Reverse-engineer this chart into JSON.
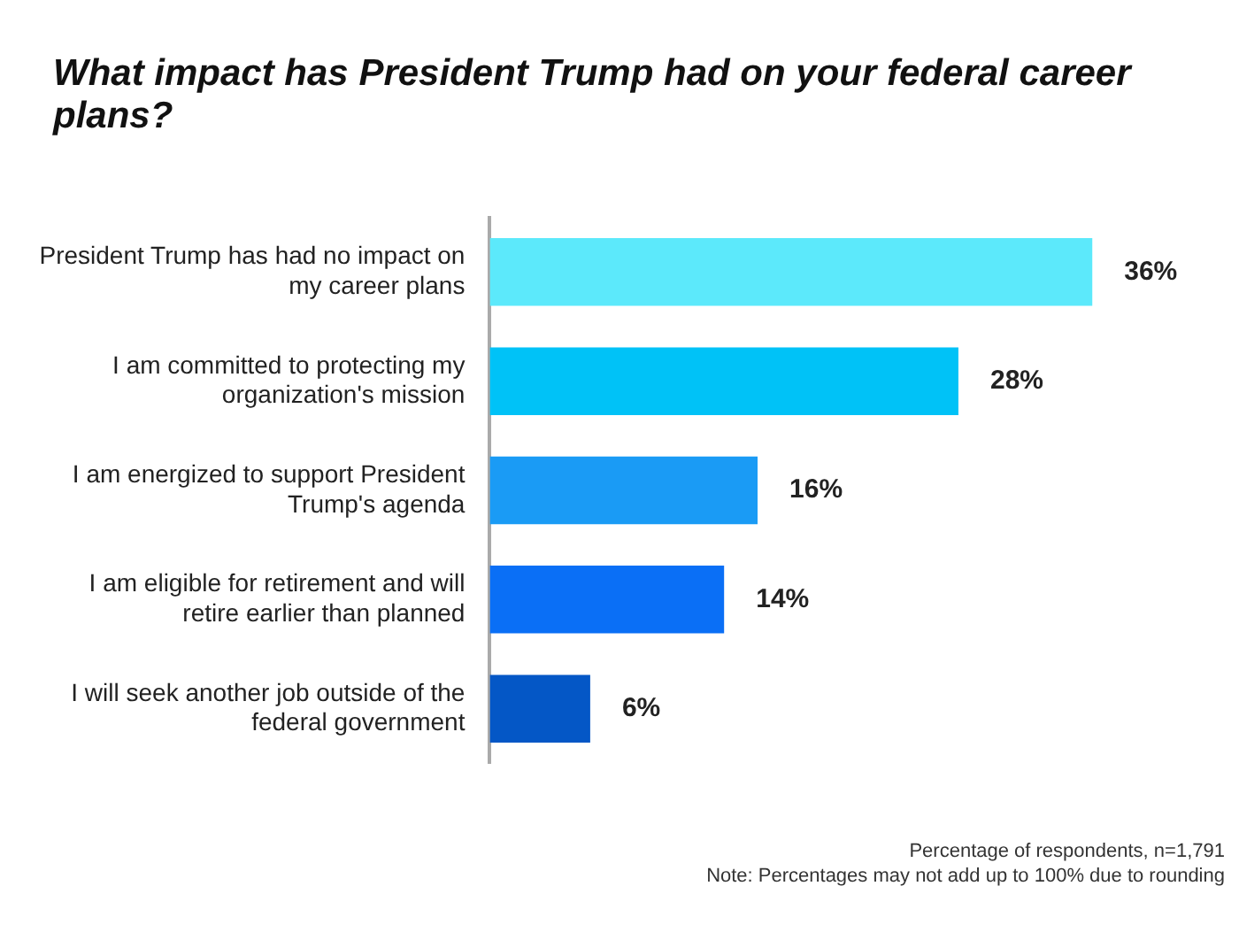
{
  "chart_data": {
    "type": "bar",
    "orientation": "horizontal",
    "title": "What impact has President Trump had on your federal career plans?",
    "categories": [
      "President Trump has had no impact on my career plans",
      "I am committed to protecting my organization's mission",
      "I am energized to support President Trump's agenda",
      "I am eligible for retirement and will retire earlier than planned",
      "I will seek another job outside of the federal government"
    ],
    "values": [
      36,
      28,
      16,
      14,
      6
    ],
    "colors": [
      "#5ce9fb",
      "#00c2f7",
      "#1a9bf5",
      "#0a6ff6",
      "#0457c6"
    ],
    "value_labels": [
      "36%",
      "28%",
      "16%",
      "14%",
      "6%"
    ],
    "tick_labels": "y",
    "legend": false,
    "annotations": [
      "Percentage of respondents, n=1,791",
      "Note: Percentages may not add up to 100% due to rounding"
    ]
  }
}
